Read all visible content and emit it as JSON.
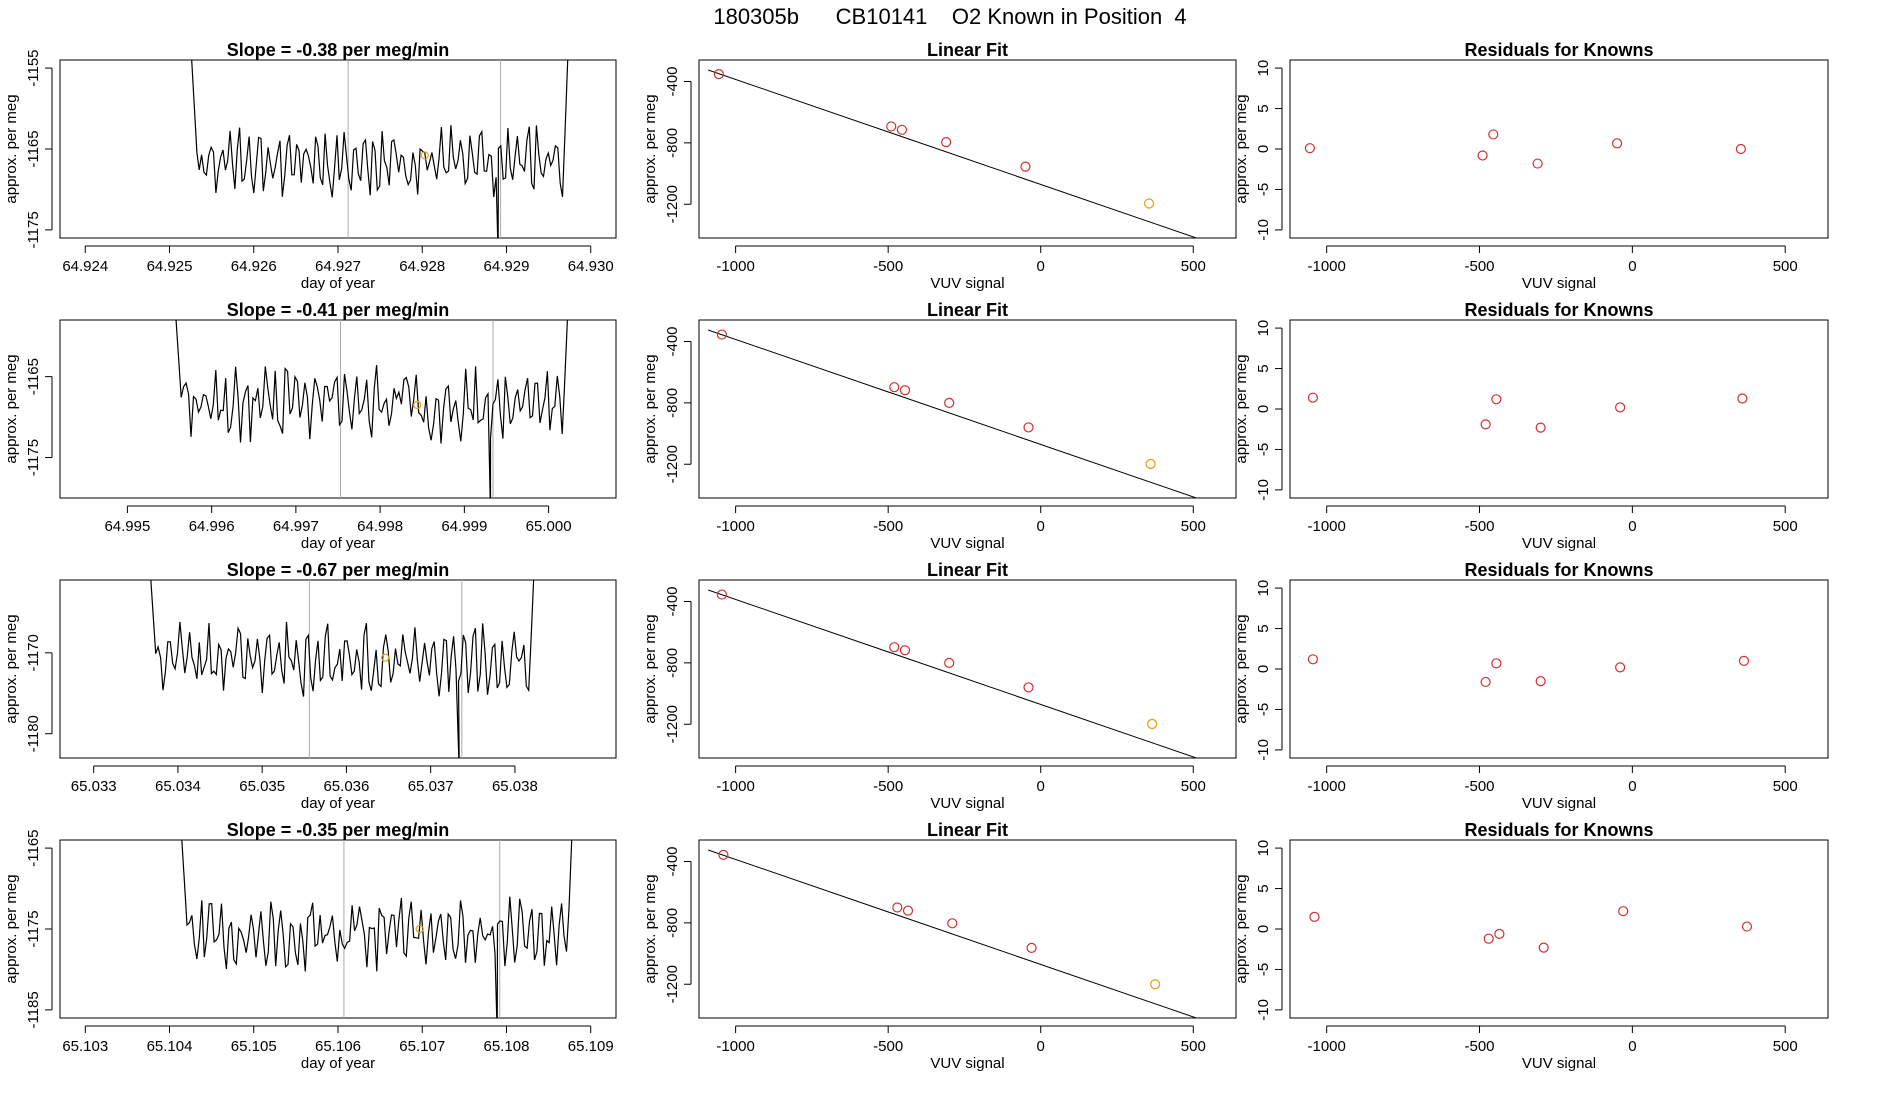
{
  "figure": {
    "title": "180305b      CB10141    O2 Known in Position  4",
    "colors": {
      "line": "#000000",
      "known_point": "#e8a020",
      "std_point": "#d03030",
      "vline": "#aaaaaa"
    }
  },
  "chart_data": [
    {
      "type": "line",
      "panel": "timeseries",
      "row": 1,
      "title": "Slope =  -0.38  per meg/min",
      "xlabel": "day of year",
      "ylabel": "approx. per meg",
      "xlim": [
        64.9237,
        64.9303
      ],
      "ylim": [
        -1176,
        -1154
      ],
      "xticks": [
        "64.924",
        "64.925",
        "64.926",
        "64.927",
        "64.928",
        "64.929",
        "64.930"
      ],
      "yticks": [
        "-1155",
        "-1165",
        "-1175"
      ],
      "vlines": [
        64.92712,
        64.92893
      ],
      "x_start": 64.92524,
      "x_end": 64.92975,
      "mean": -1166.5,
      "amplitude": 2.6,
      "seed": 11,
      "known_point": {
        "x": 64.92803,
        "y": -1165.8
      }
    },
    {
      "type": "scatter",
      "panel": "linear_fit",
      "row": 1,
      "title": "Linear Fit",
      "xlabel": "VUV signal",
      "ylabel": "approx. per meg",
      "xlim": [
        -1120,
        640
      ],
      "ylim": [
        -1420,
        -260
      ],
      "xticks": [
        -1000,
        -500,
        0,
        500
      ],
      "yticks": [
        -400,
        -800,
        -1200
      ],
      "fit_line": {
        "x": [
          -1090,
          630
        ],
        "y": [
          -325,
          -1502
        ]
      },
      "points": [
        {
          "x": -1055,
          "y": -352
        },
        {
          "x": -490,
          "y": -693
        },
        {
          "x": -455,
          "y": -715
        },
        {
          "x": -310,
          "y": -795
        },
        {
          "x": -50,
          "y": -955
        }
      ],
      "known_point": {
        "x": 355,
        "y": -1195
      }
    },
    {
      "type": "scatter",
      "panel": "residuals",
      "row": 1,
      "title": "Residuals for Knowns",
      "xlabel": "VUV signal",
      "ylabel": "approx. per meg",
      "xlim": [
        -1120,
        640
      ],
      "ylim": [
        -11,
        11
      ],
      "xticks": [
        -1000,
        -500,
        0,
        500
      ],
      "yticks": [
        10,
        5,
        0,
        -5,
        -10
      ],
      "points": [
        {
          "x": -1055,
          "y": 0.1
        },
        {
          "x": -490,
          "y": -0.8
        },
        {
          "x": -455,
          "y": 1.8
        },
        {
          "x": -310,
          "y": -1.8
        },
        {
          "x": -50,
          "y": 0.7
        },
        {
          "x": 355,
          "y": 0.0
        }
      ]
    },
    {
      "type": "line",
      "panel": "timeseries",
      "row": 2,
      "title": "Slope =  -0.41  per meg/min",
      "xlabel": "day of year",
      "ylabel": "approx. per meg",
      "xlim": [
        64.9942,
        65.0008
      ],
      "ylim": [
        -1180,
        -1158
      ],
      "xticks": [
        "64.995",
        "64.996",
        "64.997",
        "64.998",
        "64.999",
        "65.000"
      ],
      "yticks": [
        "-1165",
        "-1175"
      ],
      "vlines": [
        64.99753,
        64.99934
      ],
      "x_start": 64.99555,
      "x_end": 65.00025,
      "mean": -1168.5,
      "amplitude": 2.8,
      "seed": 23,
      "known_point": {
        "x": 64.99844,
        "y": -1168.5
      }
    },
    {
      "type": "scatter",
      "panel": "linear_fit",
      "row": 2,
      "title": "Linear Fit",
      "xlabel": "VUV signal",
      "ylabel": "approx. per meg",
      "xlim": [
        -1120,
        640
      ],
      "ylim": [
        -1420,
        -260
      ],
      "xticks": [
        -1000,
        -500,
        0,
        500
      ],
      "yticks": [
        -400,
        -800,
        -1200
      ],
      "fit_line": {
        "x": [
          -1090,
          630
        ],
        "y": [
          -325,
          -1502
        ]
      },
      "points": [
        {
          "x": -1045,
          "y": -355
        },
        {
          "x": -480,
          "y": -698
        },
        {
          "x": -445,
          "y": -718
        },
        {
          "x": -300,
          "y": -800
        },
        {
          "x": -40,
          "y": -960
        }
      ],
      "known_point": {
        "x": 360,
        "y": -1198
      }
    },
    {
      "type": "scatter",
      "panel": "residuals",
      "row": 2,
      "title": "Residuals for Knowns",
      "xlabel": "VUV signal",
      "ylabel": "approx. per meg",
      "xlim": [
        -1120,
        640
      ],
      "ylim": [
        -11,
        11
      ],
      "xticks": [
        -1000,
        -500,
        0,
        500
      ],
      "yticks": [
        10,
        5,
        0,
        -5,
        -10
      ],
      "points": [
        {
          "x": -1045,
          "y": 1.4
        },
        {
          "x": -480,
          "y": -1.9
        },
        {
          "x": -445,
          "y": 1.2
        },
        {
          "x": -300,
          "y": -2.3
        },
        {
          "x": -40,
          "y": 0.2
        },
        {
          "x": 360,
          "y": 1.3
        }
      ]
    },
    {
      "type": "line",
      "panel": "timeseries",
      "row": 3,
      "title": "Slope =  -0.67  per meg/min",
      "xlabel": "day of year",
      "ylabel": "approx. per meg",
      "xlim": [
        65.0326,
        65.0392
      ],
      "ylim": [
        -1183,
        -1161
      ],
      "xticks": [
        "65.033",
        "65.034",
        "65.035",
        "65.036",
        "65.037",
        "65.038"
      ],
      "yticks": [
        "-1170",
        "-1180"
      ],
      "vlines": [
        65.03556,
        65.03737
      ],
      "x_start": 65.03365,
      "x_end": 65.03825,
      "mean": -1171.0,
      "amplitude": 2.7,
      "seed": 37,
      "known_point": {
        "x": 65.03646,
        "y": -1170.6
      }
    },
    {
      "type": "scatter",
      "panel": "linear_fit",
      "row": 3,
      "title": "Linear Fit",
      "xlabel": "VUV signal",
      "ylabel": "approx. per meg",
      "xlim": [
        -1120,
        640
      ],
      "ylim": [
        -1420,
        -260
      ],
      "xticks": [
        -1000,
        -500,
        0,
        500
      ],
      "yticks": [
        -400,
        -800,
        -1200
      ],
      "fit_line": {
        "x": [
          -1090,
          630
        ],
        "y": [
          -325,
          -1502
        ]
      },
      "points": [
        {
          "x": -1045,
          "y": -355
        },
        {
          "x": -480,
          "y": -698
        },
        {
          "x": -445,
          "y": -718
        },
        {
          "x": -300,
          "y": -800
        },
        {
          "x": -40,
          "y": -960
        }
      ],
      "known_point": {
        "x": 365,
        "y": -1198
      }
    },
    {
      "type": "scatter",
      "panel": "residuals",
      "row": 3,
      "title": "Residuals for Knowns",
      "xlabel": "VUV signal",
      "ylabel": "approx. per meg",
      "xlim": [
        -1120,
        640
      ],
      "ylim": [
        -11,
        11
      ],
      "xticks": [
        -1000,
        -500,
        0,
        500
      ],
      "yticks": [
        10,
        5,
        0,
        -5,
        -10
      ],
      "points": [
        {
          "x": -1045,
          "y": 1.2
        },
        {
          "x": -480,
          "y": -1.6
        },
        {
          "x": -445,
          "y": 0.7
        },
        {
          "x": -300,
          "y": -1.5
        },
        {
          "x": -40,
          "y": 0.2
        },
        {
          "x": 365,
          "y": 1.0
        }
      ]
    },
    {
      "type": "line",
      "panel": "timeseries",
      "row": 4,
      "title": "Slope =  -0.35  per meg/min",
      "xlabel": "day of year",
      "ylabel": "approx. per meg",
      "xlim": [
        65.1027,
        65.1093
      ],
      "ylim": [
        -1186,
        -1164
      ],
      "xticks": [
        "65.103",
        "65.104",
        "65.105",
        "65.106",
        "65.107",
        "65.108",
        "65.109"
      ],
      "yticks": [
        "-1165",
        "-1175",
        "-1185"
      ],
      "vlines": [
        65.10607,
        65.10792
      ],
      "x_start": 65.10412,
      "x_end": 65.1088,
      "mean": -1175.5,
      "amplitude": 2.8,
      "seed": 51,
      "known_point": {
        "x": 65.10697,
        "y": -1175.0
      }
    },
    {
      "type": "scatter",
      "panel": "linear_fit",
      "row": 4,
      "title": "Linear Fit",
      "xlabel": "VUV signal",
      "ylabel": "approx. per meg",
      "xlim": [
        -1120,
        640
      ],
      "ylim": [
        -1420,
        -260
      ],
      "xticks": [
        -1000,
        -500,
        0,
        500
      ],
      "yticks": [
        -400,
        -800,
        -1200
      ],
      "fit_line": {
        "x": [
          -1090,
          630
        ],
        "y": [
          -325,
          -1502
        ]
      },
      "points": [
        {
          "x": -1040,
          "y": -357
        },
        {
          "x": -470,
          "y": -700
        },
        {
          "x": -435,
          "y": -720
        },
        {
          "x": -290,
          "y": -803
        },
        {
          "x": -30,
          "y": -963
        }
      ],
      "known_point": {
        "x": 375,
        "y": -1200
      }
    },
    {
      "type": "scatter",
      "panel": "residuals",
      "row": 4,
      "title": "Residuals for Knowns",
      "xlabel": "VUV signal",
      "ylabel": "approx. per meg",
      "xlim": [
        -1120,
        640
      ],
      "ylim": [
        -11,
        11
      ],
      "xticks": [
        -1000,
        -500,
        0,
        500
      ],
      "yticks": [
        10,
        5,
        0,
        -5,
        -10
      ],
      "points": [
        {
          "x": -1040,
          "y": 1.5
        },
        {
          "x": -470,
          "y": -1.2
        },
        {
          "x": -435,
          "y": -0.6
        },
        {
          "x": -290,
          "y": -2.3
        },
        {
          "x": -30,
          "y": 2.2
        },
        {
          "x": 375,
          "y": 0.3
        }
      ]
    }
  ]
}
